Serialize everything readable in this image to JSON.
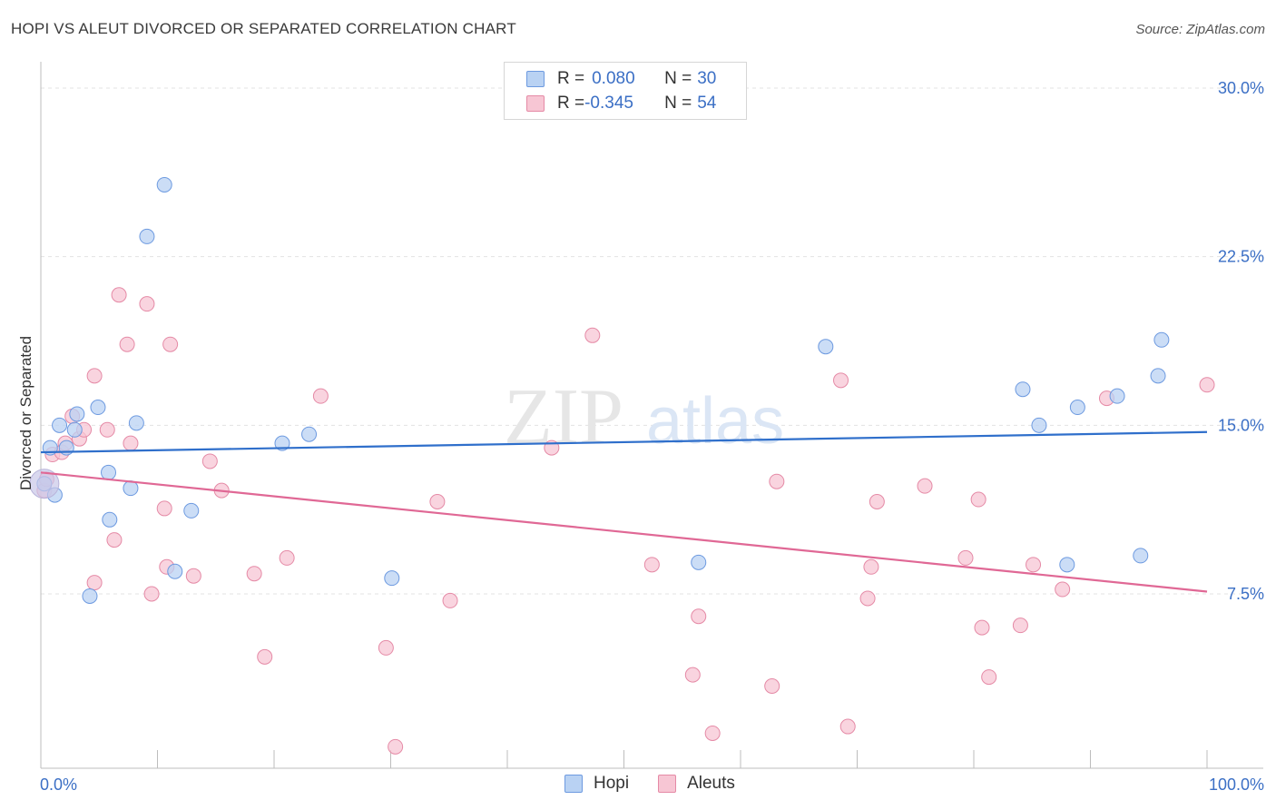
{
  "header": {
    "title": "HOPI VS ALEUT DIVORCED OR SEPARATED CORRELATION CHART",
    "source": "Source: ZipAtlas.com"
  },
  "legend": {
    "rows": [
      {
        "r_label": "R = ",
        "r_value": "0.080",
        "n_label": "N = ",
        "n_value": "30"
      },
      {
        "r_label": "R = ",
        "r_value": "-0.345",
        "n_label": "N = ",
        "n_value": "54"
      }
    ],
    "series_names": [
      "Hopi",
      "Aleuts"
    ]
  },
  "watermark": {
    "zip": "ZIP",
    "atlas": "atlas"
  },
  "colors": {
    "hopi_fill": "#b9d2f3",
    "hopi_stroke": "#6d9ae0",
    "hopi_line": "#2f6fcb",
    "aleut_fill": "#f7c6d4",
    "aleut_stroke": "#e58aa6",
    "aleut_line": "#e06895",
    "axis_text": "#3b6fc5",
    "grid": "#e3e3e3"
  },
  "chart_data": {
    "type": "scatter",
    "title": "HOPI VS ALEUT DIVORCED OR SEPARATED CORRELATION CHART",
    "xlabel": "",
    "ylabel": "Divorced or Separated",
    "xlim": [
      0,
      100
    ],
    "ylim": [
      0,
      30.8
    ],
    "x_tick_labels": [
      "0.0%",
      "100.0%"
    ],
    "y_ticks": [
      7.5,
      15.0,
      22.5,
      30.0
    ],
    "y_tick_labels": [
      "7.5%",
      "15.0%",
      "22.5%",
      "30.0%"
    ],
    "series": [
      {
        "name": "Hopi",
        "r": 0.08,
        "n": 30,
        "trend": {
          "x": [
            0,
            100
          ],
          "y": [
            13.8,
            14.7
          ]
        },
        "points": [
          [
            0.3,
            12.4
          ],
          [
            0.8,
            14.0
          ],
          [
            1.2,
            11.9
          ],
          [
            1.6,
            15.0
          ],
          [
            2.2,
            14.0
          ],
          [
            2.9,
            14.8
          ],
          [
            3.1,
            15.5
          ],
          [
            4.2,
            7.4
          ],
          [
            4.9,
            15.8
          ],
          [
            5.8,
            12.9
          ],
          [
            5.9,
            10.8
          ],
          [
            7.7,
            12.2
          ],
          [
            8.2,
            15.1
          ],
          [
            9.1,
            23.4
          ],
          [
            10.6,
            25.7
          ],
          [
            11.5,
            8.5
          ],
          [
            12.9,
            11.2
          ],
          [
            20.7,
            14.2
          ],
          [
            23.0,
            14.6
          ],
          [
            30.1,
            8.2
          ],
          [
            56.4,
            8.9
          ],
          [
            67.3,
            18.5
          ],
          [
            84.2,
            16.6
          ],
          [
            85.6,
            15.0
          ],
          [
            88.0,
            8.8
          ],
          [
            88.9,
            15.8
          ],
          [
            92.3,
            16.3
          ],
          [
            94.3,
            9.2
          ],
          [
            95.8,
            17.2
          ],
          [
            96.1,
            18.8
          ]
        ]
      },
      {
        "name": "Aleuts",
        "r": -0.345,
        "n": 54,
        "trend": {
          "x": [
            0,
            100
          ],
          "y": [
            12.9,
            7.6
          ]
        },
        "points": [
          [
            0.3,
            12.1
          ],
          [
            1.0,
            13.7
          ],
          [
            1.8,
            13.8
          ],
          [
            2.1,
            14.2
          ],
          [
            2.7,
            15.4
          ],
          [
            3.3,
            14.4
          ],
          [
            3.7,
            14.8
          ],
          [
            4.6,
            8.0
          ],
          [
            4.6,
            17.2
          ],
          [
            5.7,
            14.8
          ],
          [
            6.3,
            9.9
          ],
          [
            6.7,
            20.8
          ],
          [
            7.4,
            18.6
          ],
          [
            7.7,
            14.2
          ],
          [
            9.1,
            20.4
          ],
          [
            9.5,
            7.5
          ],
          [
            10.6,
            11.3
          ],
          [
            10.8,
            8.7
          ],
          [
            11.1,
            18.6
          ],
          [
            13.1,
            8.3
          ],
          [
            14.5,
            13.4
          ],
          [
            15.5,
            12.1
          ],
          [
            18.3,
            8.4
          ],
          [
            19.2,
            4.7
          ],
          [
            21.1,
            9.1
          ],
          [
            24.0,
            16.3
          ],
          [
            29.6,
            5.1
          ],
          [
            30.4,
            0.7
          ],
          [
            34.0,
            11.6
          ],
          [
            35.1,
            7.2
          ],
          [
            43.8,
            14.0
          ],
          [
            47.3,
            19.0
          ],
          [
            52.4,
            8.8
          ],
          [
            55.9,
            3.9
          ],
          [
            56.4,
            6.5
          ],
          [
            57.6,
            1.3
          ],
          [
            62.7,
            3.4
          ],
          [
            63.1,
            12.5
          ],
          [
            68.6,
            17.0
          ],
          [
            69.2,
            1.6
          ],
          [
            70.9,
            7.3
          ],
          [
            71.2,
            8.7
          ],
          [
            71.7,
            11.6
          ],
          [
            75.8,
            12.3
          ],
          [
            79.3,
            9.1
          ],
          [
            80.4,
            11.7
          ],
          [
            80.7,
            6.0
          ],
          [
            81.3,
            3.8
          ],
          [
            84.0,
            6.1
          ],
          [
            85.1,
            8.8
          ],
          [
            87.6,
            7.7
          ],
          [
            91.4,
            16.2
          ],
          [
            100.0,
            16.8
          ],
          [
            0.5,
            12.6
          ]
        ]
      }
    ]
  }
}
